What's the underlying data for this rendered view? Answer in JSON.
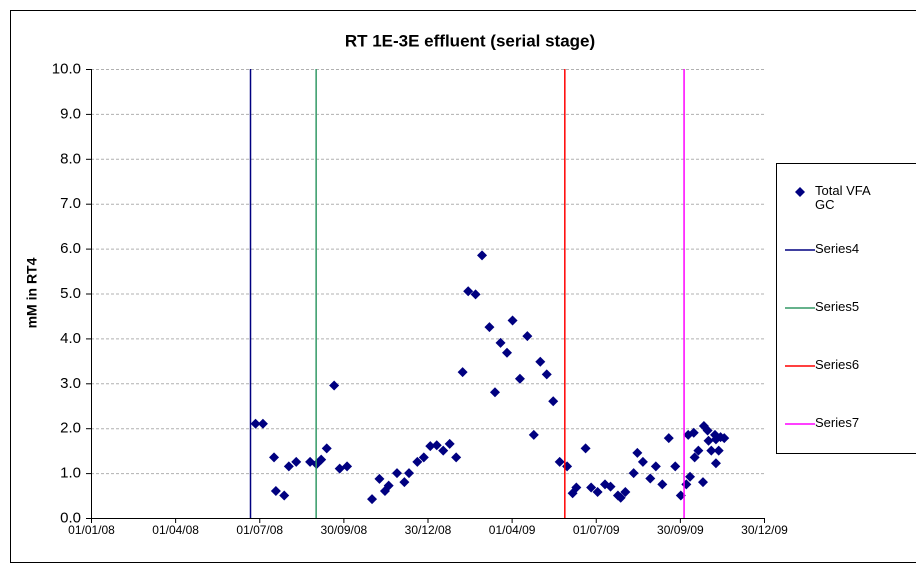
{
  "chart_data": {
    "type": "scatter",
    "title": "RT 1E-3E effluent (serial stage)",
    "ylabel": "mM in RT4",
    "xlim": [
      0,
      728
    ],
    "ylim": [
      0,
      10
    ],
    "xticks": [
      {
        "value": 0,
        "label": "01/01/08"
      },
      {
        "value": 91,
        "label": "01/04/08"
      },
      {
        "value": 182,
        "label": "01/07/08"
      },
      {
        "value": 273,
        "label": "30/09/08"
      },
      {
        "value": 364,
        "label": "30/12/08"
      },
      {
        "value": 455,
        "label": "01/04/09"
      },
      {
        "value": 546,
        "label": "01/07/09"
      },
      {
        "value": 637,
        "label": "30/09/09"
      },
      {
        "value": 728,
        "label": "30/12/09"
      }
    ],
    "yticks": [
      {
        "value": 0,
        "label": "0.0"
      },
      {
        "value": 1,
        "label": "1.0"
      },
      {
        "value": 2,
        "label": "2.0"
      },
      {
        "value": 3,
        "label": "3.0"
      },
      {
        "value": 4,
        "label": "4.0"
      },
      {
        "value": 5,
        "label": "5.0"
      },
      {
        "value": 6,
        "label": "6.0"
      },
      {
        "value": 7,
        "label": "7.0"
      },
      {
        "value": 8,
        "label": "8.0"
      },
      {
        "value": 9,
        "label": "9.0"
      },
      {
        "value": 10,
        "label": "10.0"
      }
    ],
    "grid": true,
    "legend": "right",
    "series": [
      {
        "name": "Total VFA GC",
        "color": "#000080",
        "marker": "diamond",
        "x": [
          178,
          186,
          198,
          200,
          209,
          214,
          222,
          237,
          244,
          249,
          255,
          263,
          269,
          277,
          304,
          312,
          318,
          322,
          331,
          339,
          344,
          353,
          360,
          367,
          374,
          381,
          388,
          395,
          402,
          408,
          416,
          423,
          431,
          437,
          443,
          450,
          456,
          464,
          472,
          479,
          486,
          493,
          500,
          507,
          515,
          521,
          525,
          535,
          541,
          548,
          556,
          562,
          570,
          573,
          578,
          587,
          591,
          597,
          605,
          611,
          618,
          625,
          632,
          638,
          644,
          648,
          646,
          652,
          653,
          657,
          662,
          663,
          667,
          668,
          671,
          675,
          676,
          676,
          679,
          681,
          685
        ],
        "values": [
          2.1,
          2.1,
          1.35,
          0.6,
          0.5,
          1.15,
          1.25,
          1.25,
          1.2,
          1.3,
          1.55,
          2.95,
          1.1,
          1.15,
          0.42,
          0.87,
          0.6,
          0.72,
          1.0,
          0.8,
          1.0,
          1.25,
          1.35,
          1.6,
          1.62,
          1.5,
          1.65,
          1.35,
          3.25,
          5.05,
          4.98,
          5.85,
          4.25,
          2.8,
          3.9,
          3.68,
          4.4,
          3.1,
          4.05,
          1.85,
          3.48,
          3.2,
          2.6,
          1.25,
          1.15,
          0.55,
          0.68,
          1.55,
          0.68,
          0.58,
          0.75,
          0.7,
          0.5,
          0.45,
          0.58,
          1.0,
          1.45,
          1.25,
          0.88,
          1.15,
          0.75,
          1.78,
          1.15,
          0.5,
          0.75,
          0.92,
          1.85,
          1.9,
          1.35,
          1.5,
          0.8,
          2.05,
          1.95,
          1.72,
          1.5,
          1.85,
          1.75,
          1.22,
          1.5,
          1.8,
          1.78
        ]
      },
      {
        "name": "Series4",
        "color": "#000080",
        "marker": "line",
        "x": [
          172,
          172
        ],
        "values": [
          0,
          10
        ]
      },
      {
        "name": "Series5",
        "color": "#339966",
        "marker": "line",
        "x": [
          243,
          243
        ],
        "values": [
          0,
          10
        ]
      },
      {
        "name": "Series6",
        "color": "#ff0000",
        "marker": "line",
        "x": [
          512,
          512
        ],
        "values": [
          0,
          10
        ]
      },
      {
        "name": "Series7",
        "color": "#ff00ff",
        "marker": "line",
        "x": [
          641,
          641
        ],
        "values": [
          0,
          10
        ]
      }
    ]
  }
}
